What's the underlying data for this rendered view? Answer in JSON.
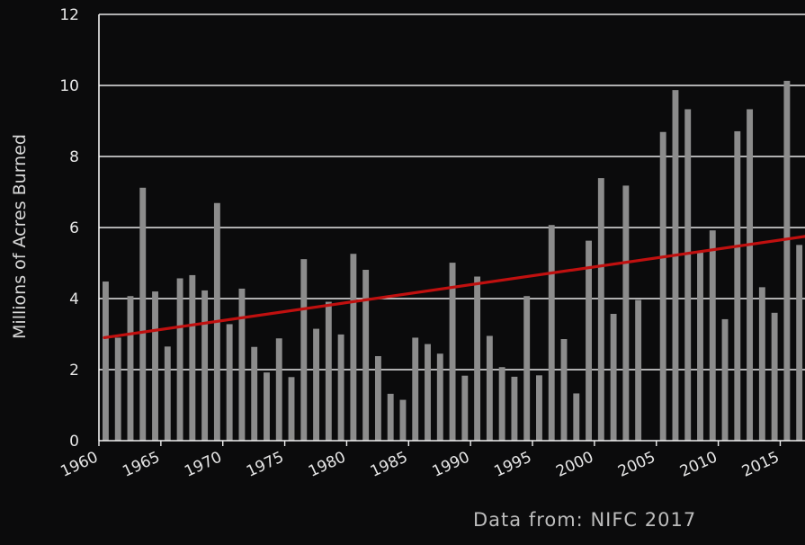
{
  "chart_data": {
    "type": "bar",
    "title": "",
    "xlabel": "",
    "ylabel": "Millions of Acres Burned",
    "ylim": [
      0,
      12
    ],
    "xlim": [
      1960,
      2017
    ],
    "yticks": [
      "0",
      "2",
      "4",
      "6",
      "8",
      "10",
      "12"
    ],
    "xticks": [
      "1960",
      "1965",
      "1970",
      "1975",
      "1980",
      "1985",
      "1990",
      "1995",
      "2000",
      "2005",
      "2010",
      "2015"
    ],
    "grid": "horizontal",
    "bar_color": "#8c8c8c",
    "x": [
      1960,
      1961,
      1962,
      1963,
      1964,
      1965,
      1966,
      1967,
      1968,
      1969,
      1970,
      1971,
      1972,
      1973,
      1974,
      1975,
      1976,
      1977,
      1978,
      1979,
      1980,
      1981,
      1982,
      1983,
      1984,
      1985,
      1986,
      1987,
      1988,
      1989,
      1990,
      1991,
      1992,
      1993,
      1994,
      1995,
      1996,
      1997,
      1998,
      1999,
      2000,
      2001,
      2002,
      2003,
      2004,
      2005,
      2006,
      2007,
      2008,
      2009,
      2010,
      2011,
      2012,
      2013,
      2014,
      2015,
      2016
    ],
    "values": [
      4.48,
      2.9,
      4.07,
      7.12,
      4.2,
      2.65,
      4.57,
      4.66,
      4.23,
      6.69,
      3.28,
      4.28,
      2.64,
      1.92,
      2.88,
      1.79,
      5.11,
      3.15,
      3.91,
      2.99,
      5.26,
      4.81,
      2.38,
      1.32,
      1.15,
      2.9,
      2.72,
      2.45,
      5.01,
      1.83,
      4.62,
      2.95,
      2.07,
      1.8,
      4.07,
      1.84,
      6.07,
      2.86,
      1.33,
      5.63,
      7.39,
      3.57,
      7.18,
      3.96,
      0,
      8.69,
      9.87,
      9.33,
      5.29,
      5.92,
      3.42,
      8.71,
      9.33,
      4.32,
      3.6,
      10.13,
      5.51
    ],
    "trend": {
      "type": "line",
      "color": "#c0100f",
      "x": [
        1960,
        2017
      ],
      "y": [
        2.9,
        5.75
      ]
    },
    "annotation": "Data from: NIFC 2017"
  }
}
